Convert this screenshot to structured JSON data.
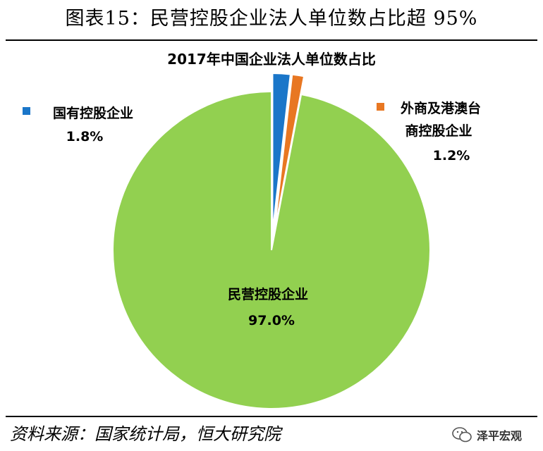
{
  "figure": {
    "title": "图表15：民营控股企业法人单位数占比超 95%",
    "source": "资料来源：国家统计局，恒大研究院",
    "watermark": "泽平宏观"
  },
  "chart_data": {
    "type": "pie",
    "title": "2017年中国企业法人单位数占比",
    "slices": [
      {
        "label": "国有控股企业",
        "value": 1.8,
        "value_label": "1.8%",
        "color": "#1a76c9",
        "exploded": true
      },
      {
        "label": "外商及港澳台商控股企业",
        "value": 1.2,
        "value_label": "1.2%",
        "color": "#e87722",
        "exploded": true
      },
      {
        "label": "民营控股企业",
        "value": 97.0,
        "value_label": "97.0%",
        "color": "#92d050",
        "exploded": false
      }
    ],
    "legend": "labels beside slices",
    "start_angle": "12 o'clock, clockwise"
  }
}
